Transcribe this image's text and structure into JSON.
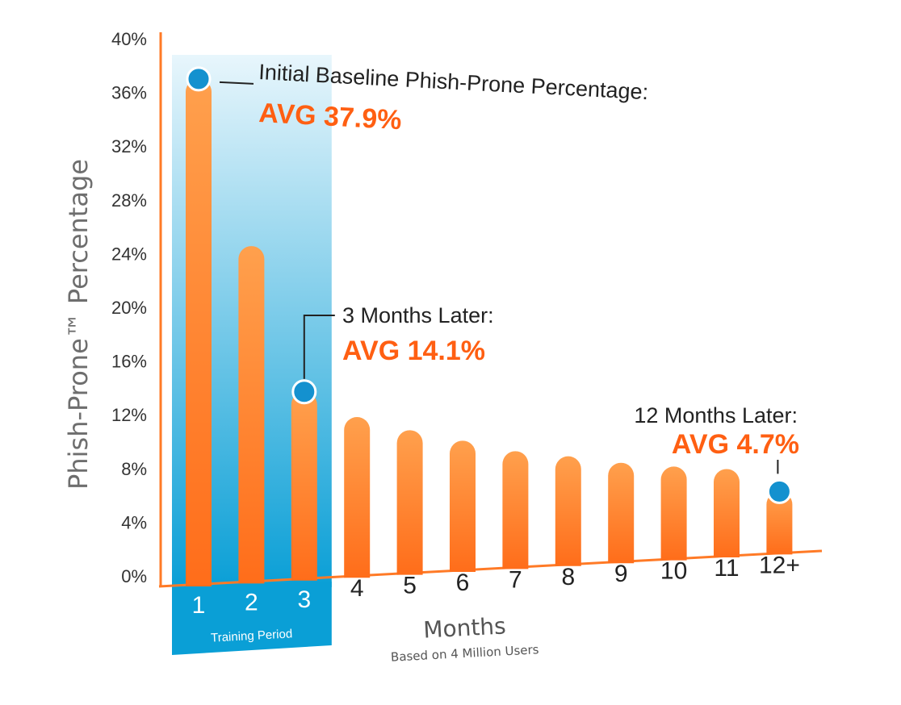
{
  "chart_data": {
    "type": "bar",
    "title": "",
    "ylabel": "Phish-Prone™ Percentage",
    "xlabel": "Months",
    "subtitle": "Based on 4 Million Users",
    "categories": [
      "1",
      "2",
      "3",
      "4",
      "5",
      "6",
      "7",
      "8",
      "9",
      "10",
      "11",
      "12+"
    ],
    "values": [
      37.9,
      25.2,
      14.1,
      12.0,
      10.8,
      9.8,
      8.8,
      8.2,
      7.5,
      7.0,
      6.6,
      4.7
    ],
    "ylim": [
      0,
      40
    ],
    "yticks": [
      "0%",
      "4%",
      "8%",
      "12%",
      "16%",
      "20%",
      "24%",
      "28%",
      "32%",
      "36%",
      "40%"
    ],
    "grid": false,
    "band": {
      "label": "Training Period",
      "from_category": "1",
      "to_category": "3"
    },
    "annotations": [
      {
        "target": "1",
        "title": "Initial Baseline Phish-Prone Percentage:",
        "value": "AVG 37.9%"
      },
      {
        "target": "3",
        "title": "3 Months Later:",
        "value": "AVG 14.1%"
      },
      {
        "target": "12+",
        "title": "12 Months Later:",
        "value": "AVG 4.7%"
      }
    ],
    "colors": {
      "bar": "#ff6d1a",
      "bar_light": "#ffa04d",
      "axis": "#ff7a26",
      "band_top": "#e8f6fc",
      "band_bottom": "#0a9fd6",
      "marker": "#1491cf",
      "value_text": "#ff5f12"
    }
  }
}
